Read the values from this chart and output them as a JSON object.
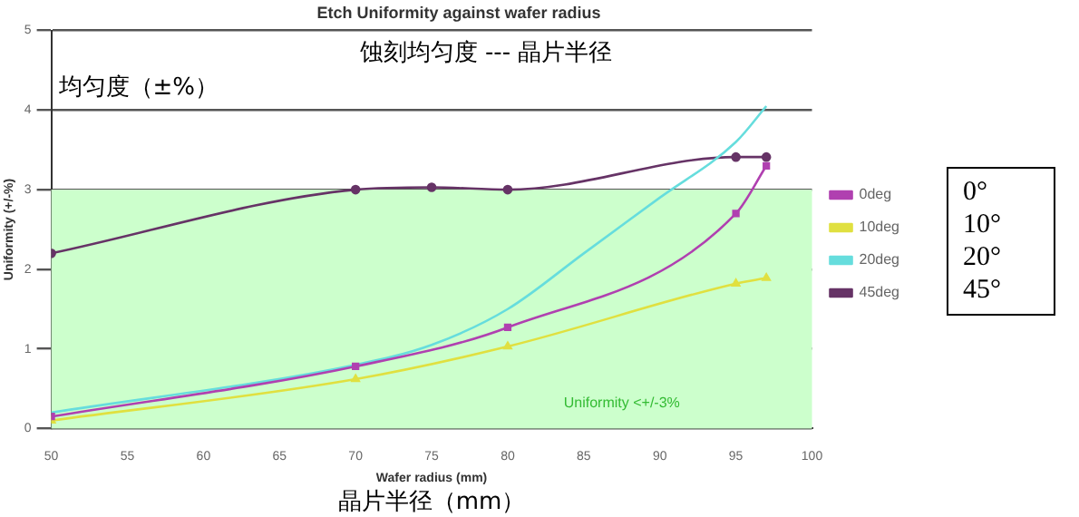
{
  "chart_data": {
    "type": "line",
    "title": "Etch Uniformity against wafer radius",
    "xlabel": "Wafer radius (mm)",
    "ylabel": "Uniformity (+/-%)",
    "xlim": [
      50,
      100
    ],
    "xticks": [
      50,
      55,
      60,
      65,
      70,
      75,
      80,
      85,
      90,
      95,
      100
    ],
    "ylim": [
      0,
      5
    ],
    "yticks": [
      0,
      1,
      2,
      3,
      4,
      5
    ],
    "grid": "y",
    "legend": "right",
    "series": [
      {
        "name": "0deg",
        "color": "#b040b0",
        "marker": "square",
        "x": [
          50,
          70,
          80,
          95,
          97
        ],
        "values": [
          0.15,
          0.78,
          1.27,
          2.7,
          3.3
        ]
      },
      {
        "name": "10deg",
        "color": "#e0e040",
        "marker": "triangle",
        "x": [
          50,
          70,
          80,
          95,
          97
        ],
        "values": [
          0.1,
          0.62,
          1.03,
          1.82,
          1.89
        ]
      },
      {
        "name": "20deg",
        "color": "#66dddd",
        "marker": "none",
        "x": [
          50,
          70,
          75,
          80,
          85,
          90,
          95,
          97
        ],
        "values": [
          0.2,
          0.8,
          1.05,
          1.5,
          2.2,
          2.9,
          3.6,
          4.05
        ]
      },
      {
        "name": "45deg",
        "color": "#663366",
        "marker": "circle",
        "x": [
          50,
          70,
          75,
          80,
          95,
          97
        ],
        "values": [
          2.2,
          3.0,
          3.03,
          3.0,
          3.41,
          3.41
        ]
      }
    ],
    "bands": [
      {
        "axis": "y",
        "from": 0,
        "to": 3,
        "label": "Uniformity <+/-3%",
        "color": "#ccffcc"
      }
    ],
    "annotations": [
      "蚀刻均匀度 --- 晶片半径",
      "均匀度（±%）",
      "晶片半径（mm）",
      "0°",
      "10°",
      "20°",
      "45°"
    ]
  }
}
